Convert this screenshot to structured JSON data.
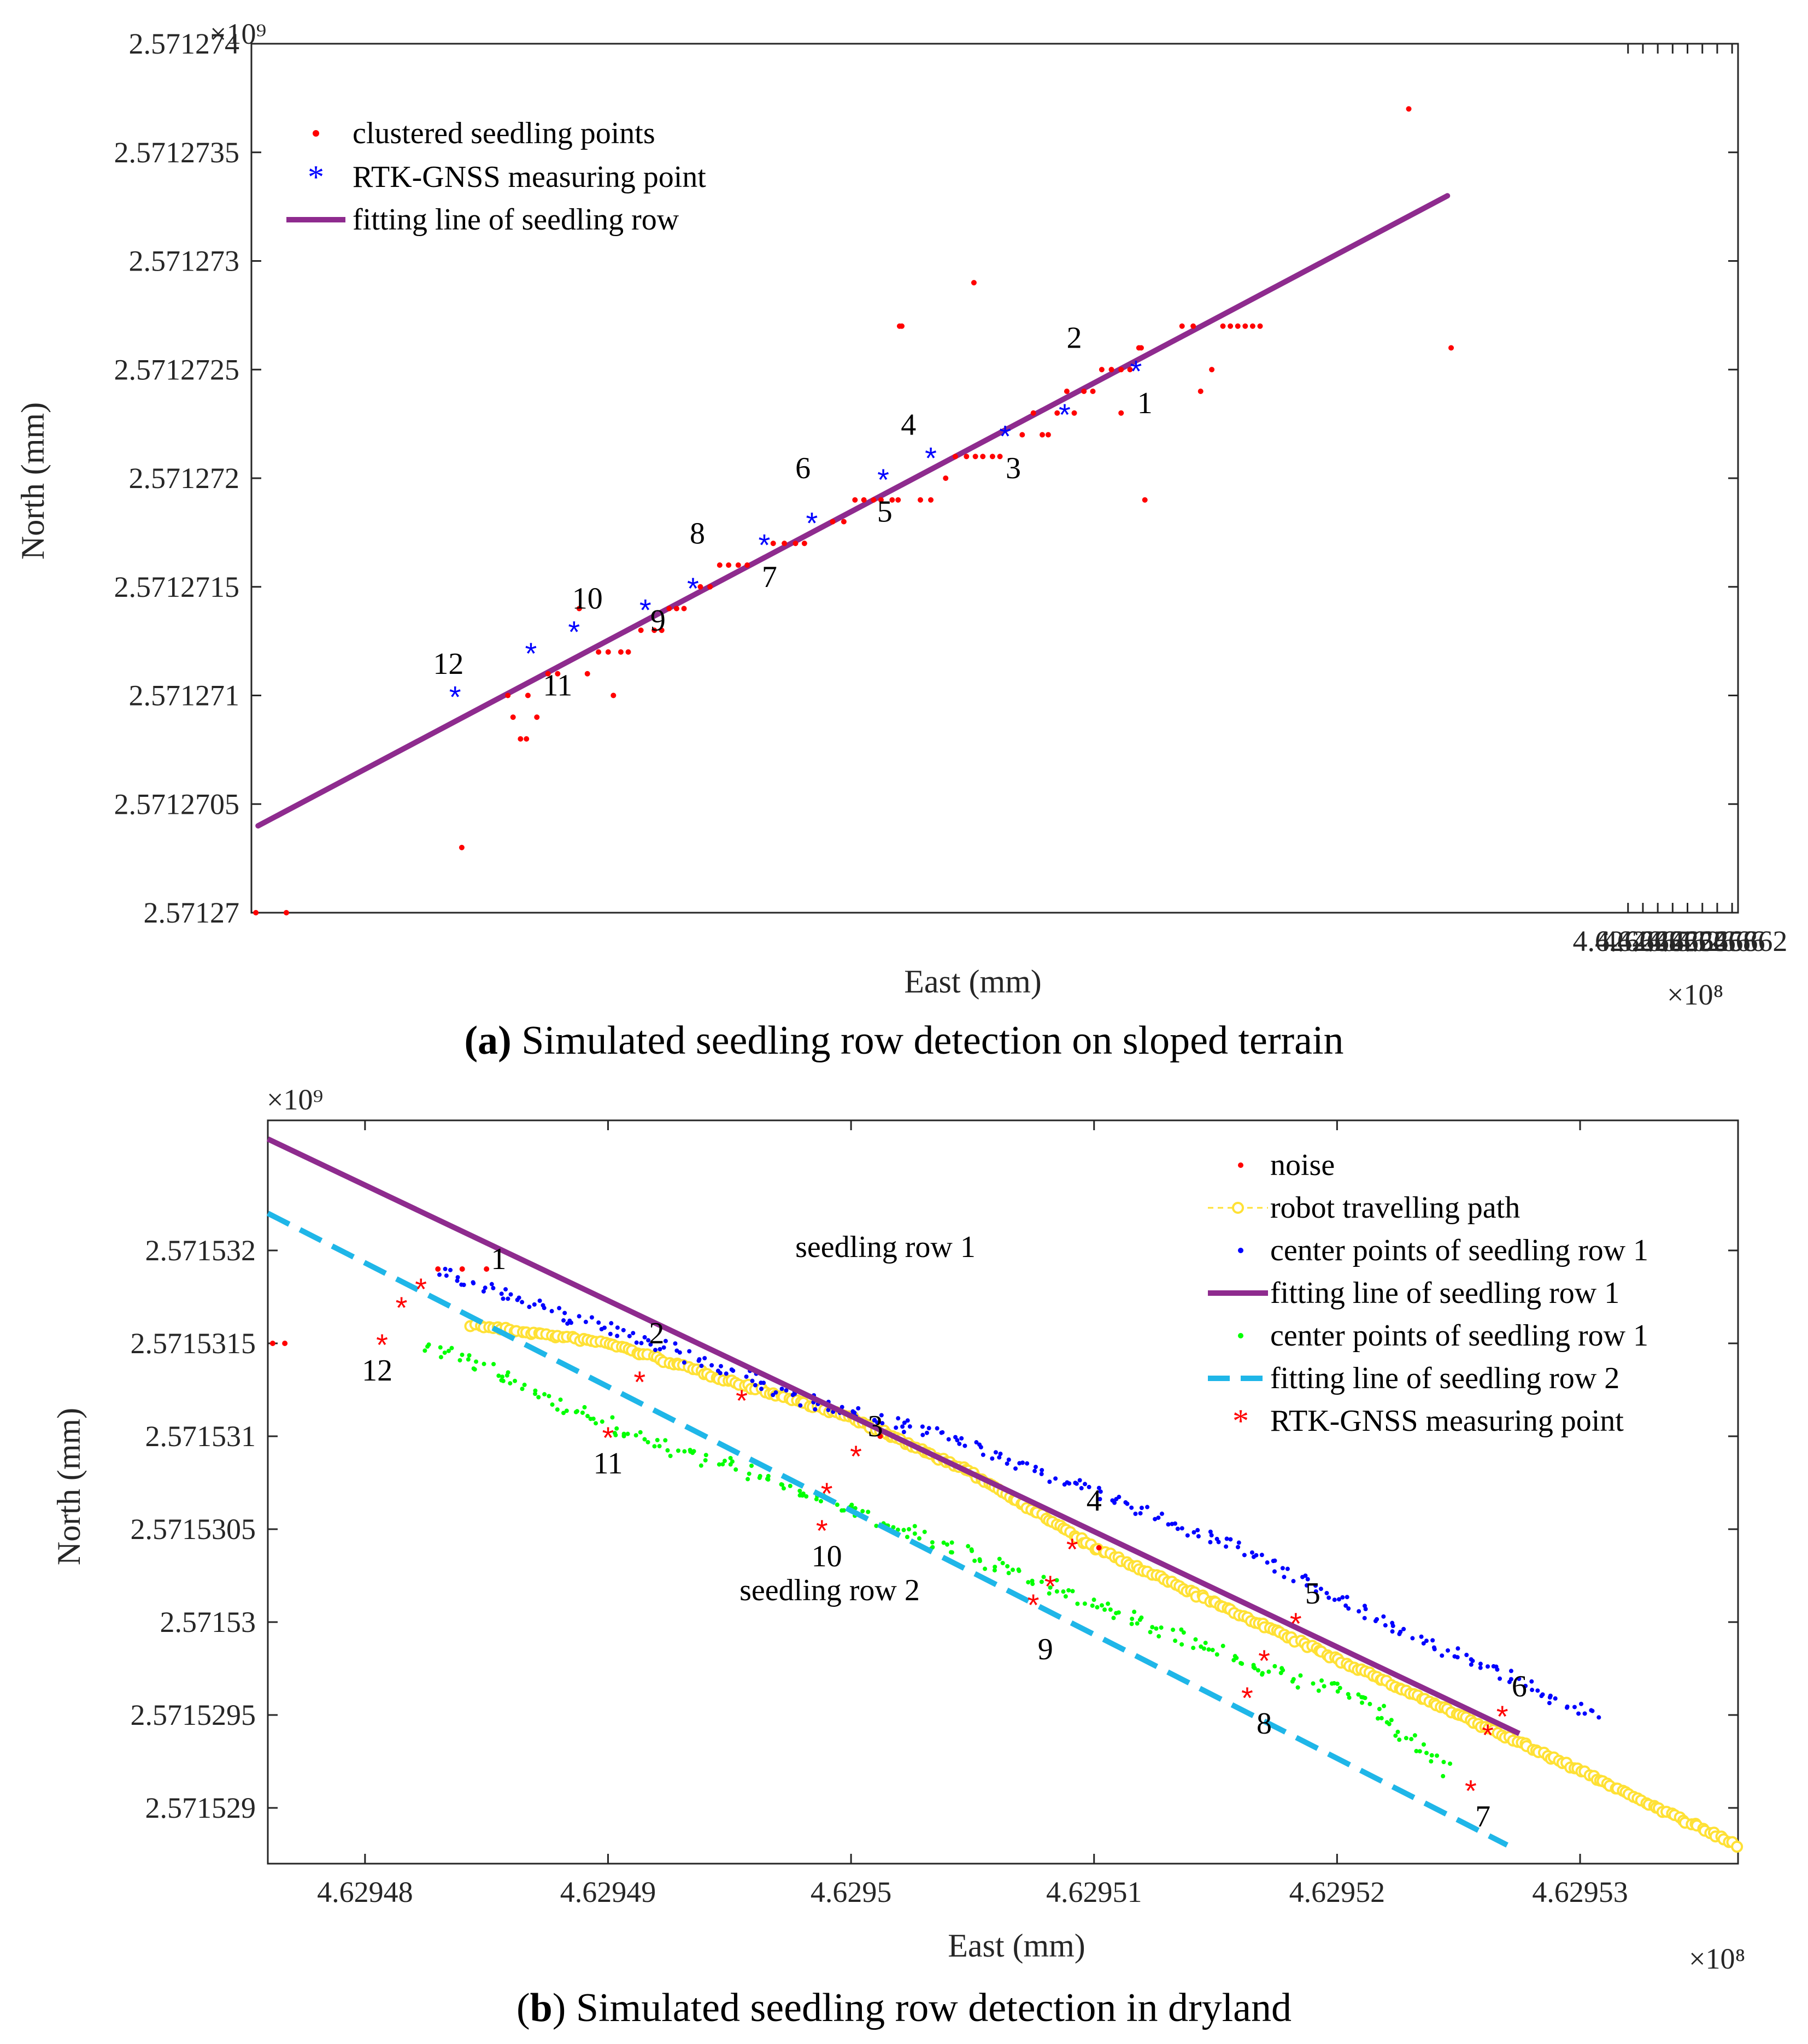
{
  "captions": {
    "a": {
      "label": "(a)",
      "text": " Simulated seedling row detection on sloped terrain"
    },
    "b": {
      "open": "(",
      "label": "b",
      "text": ") Simulated seedling row detection in dryland"
    }
  },
  "colors": {
    "red": "#ff0000",
    "blue": "#0000ff",
    "purple": "#8e2b8e",
    "yellow": "#ffe135",
    "green": "#00ff00",
    "cyan": "#1fb6e8",
    "axis": "#262626"
  },
  "chart_data": [
    {
      "type": "scatter",
      "title": "Simulated seedling row detection on sloped terrain",
      "xlabel": "East (mm)",
      "ylabel": "North (mm)",
      "x_exponent": "×10⁸",
      "y_exponent": "×10⁹",
      "xlim": [
        4.6264628,
        4.6266628
      ],
      "ylim": [
        2.57127,
        2.571274
      ],
      "xticks": [
        4.626648,
        4.62665,
        4.626652,
        4.626654,
        4.626656,
        4.626658,
        4.62666,
        4.626662
      ],
      "xtick_labels": [
        "4.626648",
        "4.62665",
        "4.626652",
        "4.626654",
        "4.626656",
        "4.626658",
        "4.62666",
        "4.626662"
      ],
      "yticks": [
        2.57127,
        2.5712705,
        2.571271,
        2.5712715,
        2.571272,
        2.5712725,
        2.571273,
        2.5712735,
        2.571274
      ],
      "ytick_labels": [
        "2.57127",
        "2.5712705",
        "2.571271",
        "2.5712715",
        "2.571272",
        "2.5712725",
        "2.571273",
        "2.5712735",
        "2.571274"
      ],
      "series": [
        {
          "name": "clustered seedling points",
          "marker": "dot",
          "color": "#ff0000",
          "points": [
            [
              4.6264634,
              2.57127
            ],
            [
              4.6264675,
              2.57127
            ],
            [
              4.6264911,
              2.5712703
            ],
            [
              4.6264973,
              2.571271
            ],
            [
              4.626498,
              2.5712709
            ],
            [
              4.626499,
              2.5712708
            ],
            [
              4.6264998,
              2.5712708
            ],
            [
              4.6265,
              2.571271
            ],
            [
              4.6265012,
              2.5712709
            ],
            [
              4.6265027,
              2.5712711
            ],
            [
              4.626504,
              2.5712711
            ],
            [
              4.6265069,
              2.5712714
            ],
            [
              4.626508,
              2.5712711
            ],
            [
              4.6265095,
              2.5712712
            ],
            [
              4.6265108,
              2.5712712
            ],
            [
              4.6265115,
              2.571271
            ],
            [
              4.6265125,
              2.5712712
            ],
            [
              4.6265135,
              2.5712712
            ],
            [
              4.6265152,
              2.5712713
            ],
            [
              4.626517,
              2.5712713
            ],
            [
              4.626518,
              2.5712713
            ],
            [
              4.626519,
              2.5712714
            ],
            [
              4.62652,
              2.5712714
            ],
            [
              4.626521,
              2.5712714
            ],
            [
              4.6265232,
              2.5712715
            ],
            [
              4.6265245,
              2.5712715
            ],
            [
              4.6265258,
              2.5712716
            ],
            [
              4.626527,
              2.5712716
            ],
            [
              4.6265283,
              2.5712716
            ],
            [
              4.6265295,
              2.5712716
            ],
            [
              4.626533,
              2.5712717
            ],
            [
              4.6265345,
              2.5712717
            ],
            [
              4.626536,
              2.5712717
            ],
            [
              4.6265372,
              2.5712717
            ],
            [
              4.626541,
              2.5712718
            ],
            [
              4.6265425,
              2.5712718
            ],
            [
              4.626544,
              2.5712719
            ],
            [
              4.6265452,
              2.5712719
            ],
            [
              4.6265465,
              2.5712719
            ],
            [
              4.6265475,
              2.5712719
            ],
            [
              4.626549,
              2.5712719
            ],
            [
              4.6265498,
              2.5712719
            ],
            [
              4.62655,
              2.5712727
            ],
            [
              4.6265503,
              2.5712727
            ],
            [
              4.6265528,
              2.5712719
            ],
            [
              4.6265542,
              2.5712719
            ],
            [
              4.6265562,
              2.571272
            ],
            [
              4.6265575,
              2.5712721
            ],
            [
              4.626559,
              2.5712721
            ],
            [
              4.6265602,
              2.5712721
            ],
            [
              4.6265612,
              2.5712721
            ],
            [
              4.6265625,
              2.5712721
            ],
            [
              4.6265635,
              2.5712721
            ],
            [
              4.62656,
              2.5712729
            ],
            [
              4.6265665,
              2.5712722
            ],
            [
              4.626568,
              2.5712723
            ],
            [
              4.6265692,
              2.5712722
            ],
            [
              4.62657,
              2.5712722
            ],
            [
              4.6265712,
              2.5712723
            ],
            [
              4.6265725,
              2.5712724
            ],
            [
              4.6265735,
              2.5712723
            ],
            [
              4.6265748,
              2.5712724
            ],
            [
              4.626576,
              2.5712724
            ],
            [
              4.6265772,
              2.5712725
            ],
            [
              4.6265785,
              2.5712725
            ],
            [
              4.6265798,
              2.5712725
            ],
            [
              4.626581,
              2.5712725
            ],
            [
              4.6265825,
              2.5712726
            ],
            [
              4.6265798,
              2.5712723
            ],
            [
              4.626583,
              2.5712719
            ],
            [
              4.6265822,
              2.5712726
            ],
            [
              4.626588,
              2.5712727
            ],
            [
              4.6265895,
              2.5712727
            ],
            [
              4.6265905,
              2.5712724
            ],
            [
              4.626592,
              2.5712725
            ],
            [
              4.6265935,
              2.5712727
            ],
            [
              4.6265945,
              2.5712727
            ],
            [
              4.6265955,
              2.5712727
            ],
            [
              4.6265965,
              2.5712727
            ],
            [
              4.6265975,
              2.5712727
            ],
            [
              4.6265985,
              2.5712727
            ],
            [
              4.6266185,
              2.5712737
            ],
            [
              4.6266242,
              2.5712726
            ]
          ]
        },
        {
          "name": "RTK-GNSS measuring point",
          "marker": "asterisk",
          "color": "#0000ff",
          "points": [
            [
              4.6265818,
              2.5712725
            ],
            [
              4.6265722,
              2.5712723
            ],
            [
              4.6265642,
              2.5712722
            ],
            [
              4.6265542,
              2.5712721
            ],
            [
              4.6265478,
              2.571272
            ],
            [
              4.6265382,
              2.5712718
            ],
            [
              4.6265318,
              2.5712717
            ],
            [
              4.6265222,
              2.5712715
            ],
            [
              4.6265158,
              2.5712714
            ],
            [
              4.6265062,
              2.5712713
            ],
            [
              4.6265004,
              2.5712712
            ],
            [
              4.6264902,
              2.571271
            ]
          ]
        },
        {
          "name": "fitting line of seedling row",
          "marker": "line",
          "color": "#8e2b8e",
          "points": [
            [
              4.6264637,
              2.5712704
            ],
            [
              4.6266237,
              2.5712733
            ]
          ]
        }
      ],
      "annotations": [
        {
          "text": "1",
          "x": 4.626583,
          "y": 2.5712723
        },
        {
          "text": "2",
          "x": 4.6265735,
          "y": 2.5712726
        },
        {
          "text": "3",
          "x": 4.6265653,
          "y": 2.571272
        },
        {
          "text": "4",
          "x": 4.6265512,
          "y": 2.5712722
        },
        {
          "text": "5",
          "x": 4.626548,
          "y": 2.5712718
        },
        {
          "text": "6",
          "x": 4.626537,
          "y": 2.571272
        },
        {
          "text": "7",
          "x": 4.6265325,
          "y": 2.5712715
        },
        {
          "text": "8",
          "x": 4.6265228,
          "y": 2.5712717
        },
        {
          "text": "9",
          "x": 4.6265175,
          "y": 2.5712713
        },
        {
          "text": "10",
          "x": 4.626508,
          "y": 2.5712714
        },
        {
          "text": "11",
          "x": 4.626504,
          "y": 2.571271
        },
        {
          "text": "12",
          "x": 4.6264893,
          "y": 2.5712711
        }
      ]
    },
    {
      "type": "scatter",
      "title": "Simulated seedling row detection in dryland",
      "xlabel": "East (mm)",
      "ylabel": "North (mm)",
      "x_exponent": "×10⁸",
      "y_exponent": "×10⁹",
      "xlim": [
        4.629476,
        4.6295365
      ],
      "ylim": [
        2.5715287,
        2.5715327
      ],
      "xticks": [
        4.62948,
        4.62949,
        4.6295,
        4.62951,
        4.62952,
        4.62953
      ],
      "xtick_labels": [
        "4.62948",
        "4.62949",
        "4.6295",
        "4.62951",
        "4.62952",
        "4.62953"
      ],
      "yticks": [
        2.571529,
        2.5715295,
        2.57153,
        2.5715305,
        2.571531,
        2.5715315,
        2.571532
      ],
      "ytick_labels": [
        "2.571529",
        "2.5715295",
        "2.57153",
        "2.5715305",
        "2.571531",
        "2.5715315",
        "2.571532"
      ],
      "region_labels": [
        "seedling row 1",
        "seedling row 2"
      ],
      "series": [
        {
          "name": "noise",
          "marker": "dot",
          "color": "#ff0000",
          "points": [
            [
              4.6294762,
              2.5715315
            ],
            [
              4.6294767,
              2.5715315
            ],
            [
              4.629483,
              2.5715319
            ],
            [
              4.629484,
              2.5715319
            ],
            [
              4.629485,
              2.5715319
            ],
            [
              4.6295012,
              2.571531
            ],
            [
              4.6295102,
              2.5715304
            ]
          ]
        },
        {
          "name": "robot travelling path",
          "marker": "circle-dashed",
          "color": "#ffe135",
          "path": [
            [
              4.6294844,
              2.5715316
            ],
            [
              4.62949,
              2.5715315
            ],
            [
              4.629495,
              2.5715313
            ],
            [
              4.6295,
              2.5715311
            ],
            [
              4.629505,
              2.5715308
            ],
            [
              4.62951,
              2.5715304
            ],
            [
              4.629515,
              2.5715301
            ],
            [
              4.62952,
              2.5715298
            ],
            [
              4.629525,
              2.5715295
            ],
            [
              4.62953,
              2.5715292
            ],
            [
              4.6295364,
              2.5715288
            ]
          ]
        },
        {
          "name": "center points of seedling row 1",
          "marker": "dot",
          "color": "#0000ff",
          "path": [
            [
              4.629483,
              2.5715319
            ],
            [
              4.629487,
              2.5715317
            ],
            [
              4.629492,
              2.5715315
            ],
            [
              4.629498,
              2.5715312
            ],
            [
              4.629504,
              2.571531
            ],
            [
              4.62951,
              2.5715307
            ],
            [
              4.629516,
              2.5715304
            ],
            [
              4.629522,
              2.57153
            ],
            [
              4.629527,
              2.5715297
            ],
            [
              4.6295307,
              2.5715295
            ]
          ]
        },
        {
          "name": "fitting line of seedling row 1",
          "marker": "line",
          "color": "#8e2b8e",
          "points": [
            [
              4.629476,
              2.5715326
            ],
            [
              4.6295275,
              2.5715294
            ]
          ]
        },
        {
          "name": "center points of seedling row 1",
          "marker": "dot",
          "color": "#00ff00",
          "path": [
            [
              4.6294825,
              2.5715315
            ],
            [
              4.629486,
              2.5715313
            ],
            [
              4.629491,
              2.571531
            ],
            [
              4.629496,
              2.5715308
            ],
            [
              4.629502,
              2.5715305
            ],
            [
              4.629508,
              2.5715302
            ],
            [
              4.629514,
              2.5715299
            ],
            [
              4.629518,
              2.5715297
            ],
            [
              4.629521,
              2.5715296
            ],
            [
              4.6295245,
              2.5715292
            ]
          ]
        },
        {
          "name": "fitting line of seedling row 2",
          "marker": "dashed-line",
          "color": "#1fb6e8",
          "points": [
            [
              4.629476,
              2.5715322
            ],
            [
              4.629527,
              2.5715288
            ]
          ]
        },
        {
          "name": "RTK-GNSS measuring point",
          "marker": "asterisk",
          "color": "#ff0000",
          "points": [
            [
              4.6294823,
              2.5715318
            ],
            [
              4.6294913,
              2.5715313
            ],
            [
              4.6295002,
              2.5715309
            ],
            [
              4.6295091,
              2.5715304
            ],
            [
              4.6295183,
              2.57153
            ],
            [
              4.6295268,
              2.5715295
            ],
            [
              4.6295255,
              2.5715291
            ],
            [
              4.6295163,
              2.5715296
            ],
            [
              4.6295075,
              2.5715301
            ],
            [
              4.6294988,
              2.5715305
            ],
            [
              4.62949,
              2.571531
            ],
            [
              4.6294807,
              2.5715315
            ],
            [
              4.6294815,
              2.5715317
            ],
            [
              4.6294955,
              2.5715312
            ],
            [
              4.629499,
              2.5715307
            ],
            [
              4.6295082,
              2.5715302
            ],
            [
              4.629517,
              2.5715298
            ],
            [
              4.6295262,
              2.5715294
            ]
          ]
        }
      ],
      "annotations": [
        {
          "text": "1",
          "x": 4.6294855,
          "y": 2.5715319
        },
        {
          "text": "2",
          "x": 4.629492,
          "y": 2.5715315
        },
        {
          "text": "3",
          "x": 4.629501,
          "y": 2.571531
        },
        {
          "text": "4",
          "x": 4.62951,
          "y": 2.5715306
        },
        {
          "text": "5",
          "x": 4.629519,
          "y": 2.5715301
        },
        {
          "text": "6",
          "x": 4.6295275,
          "y": 2.5715296
        },
        {
          "text": "7",
          "x": 4.629526,
          "y": 2.5715289
        },
        {
          "text": "8",
          "x": 4.629517,
          "y": 2.5715294
        },
        {
          "text": "9",
          "x": 4.629508,
          "y": 2.5715298
        },
        {
          "text": "10",
          "x": 4.629499,
          "y": 2.5715303
        },
        {
          "text": "11",
          "x": 4.62949,
          "y": 2.5715308
        },
        {
          "text": "12",
          "x": 4.6294805,
          "y": 2.5715313
        }
      ]
    }
  ]
}
